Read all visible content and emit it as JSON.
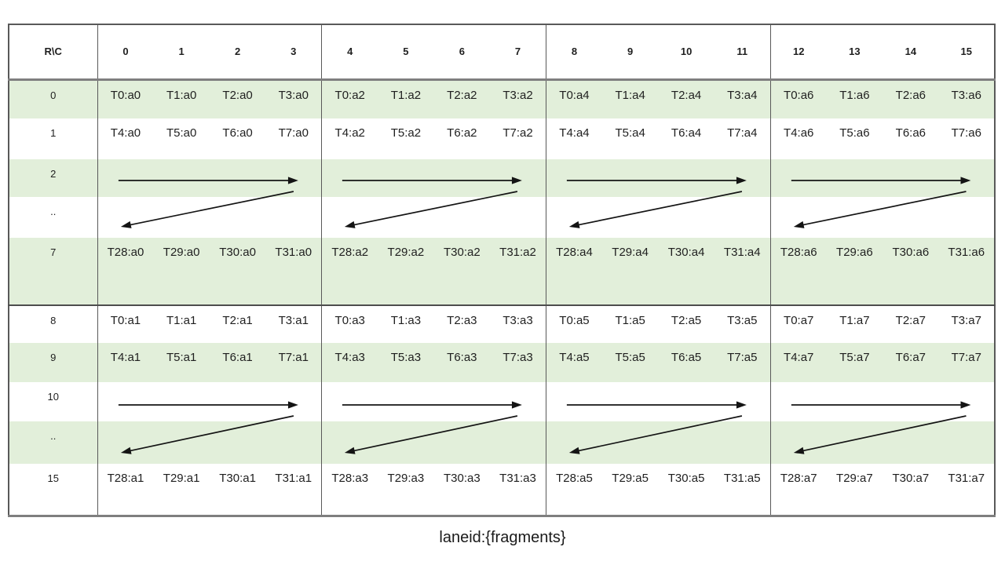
{
  "caption": "laneid:{fragments}",
  "colors": {
    "row_shade": "#e2efda",
    "row_plain": "#ffffff",
    "grid_line": "#595959",
    "thick_line": "#7f7f7f",
    "arrow": "#141414",
    "text": "#1f1f1f"
  },
  "table": {
    "corner_label": "R\\C",
    "column_headers": [
      "0",
      "1",
      "2",
      "3",
      "4",
      "5",
      "6",
      "7",
      "8",
      "9",
      "10",
      "11",
      "12",
      "13",
      "14",
      "15"
    ],
    "group_size": 4,
    "rows": [
      {
        "label": "0",
        "kind": "data",
        "shaded": true,
        "cells": [
          "T0:a0",
          "T1:a0",
          "T2:a0",
          "T3:a0",
          "T0:a2",
          "T1:a2",
          "T2:a2",
          "T3:a2",
          "T0:a4",
          "T1:a4",
          "T2:a4",
          "T3:a4",
          "T0:a6",
          "T1:a6",
          "T2:a6",
          "T3:a6"
        ]
      },
      {
        "label": "1",
        "kind": "data",
        "shaded": false,
        "cells": [
          "T4:a0",
          "T5:a0",
          "T6:a0",
          "T7:a0",
          "T4:a2",
          "T5:a2",
          "T6:a2",
          "T7:a2",
          "T4:a4",
          "T5:a4",
          "T6:a4",
          "T7:a4",
          "T4:a6",
          "T5:a6",
          "T6:a6",
          "T7:a6"
        ]
      },
      {
        "label": "2",
        "kind": "arrow-start",
        "shaded": true,
        "arrow": "forward-right"
      },
      {
        "label": "..",
        "kind": "arrow-end",
        "shaded": false,
        "arrow": "return-left"
      },
      {
        "label": "7",
        "kind": "data",
        "shaded": true,
        "cells": [
          "T28:a0",
          "T29:a0",
          "T30:a0",
          "T31:a0",
          "T28:a2",
          "T29:a2",
          "T30:a2",
          "T31:a2",
          "T28:a4",
          "T29:a4",
          "T30:a4",
          "T31:a4",
          "T28:a6",
          "T29:a6",
          "T30:a6",
          "T31:a6"
        ]
      },
      {
        "label": "8",
        "kind": "data",
        "shaded": false,
        "cells": [
          "T0:a1",
          "T1:a1",
          "T2:a1",
          "T3:a1",
          "T0:a3",
          "T1:a3",
          "T2:a3",
          "T3:a3",
          "T0:a5",
          "T1:a5",
          "T2:a5",
          "T3:a5",
          "T0:a7",
          "T1:a7",
          "T2:a7",
          "T3:a7"
        ]
      },
      {
        "label": "9",
        "kind": "data",
        "shaded": true,
        "cells": [
          "T4:a1",
          "T5:a1",
          "T6:a1",
          "T7:a1",
          "T4:a3",
          "T5:a3",
          "T6:a3",
          "T7:a3",
          "T4:a5",
          "T5:a5",
          "T6:a5",
          "T7:a5",
          "T4:a7",
          "T5:a7",
          "T6:a7",
          "T7:a7"
        ]
      },
      {
        "label": "10",
        "kind": "arrow-start",
        "shaded": false,
        "arrow": "forward-right"
      },
      {
        "label": "..",
        "kind": "arrow-end",
        "shaded": true,
        "arrow": "return-left"
      },
      {
        "label": "15",
        "kind": "data",
        "shaded": false,
        "cells": [
          "T28:a1",
          "T29:a1",
          "T30:a1",
          "T31:a1",
          "T28:a3",
          "T29:a3",
          "T30:a3",
          "T31:a3",
          "T28:a5",
          "T29:a5",
          "T30:a5",
          "T31:a5",
          "T28:a7",
          "T29:a7",
          "T30:a7",
          "T31:a7"
        ]
      }
    ]
  }
}
